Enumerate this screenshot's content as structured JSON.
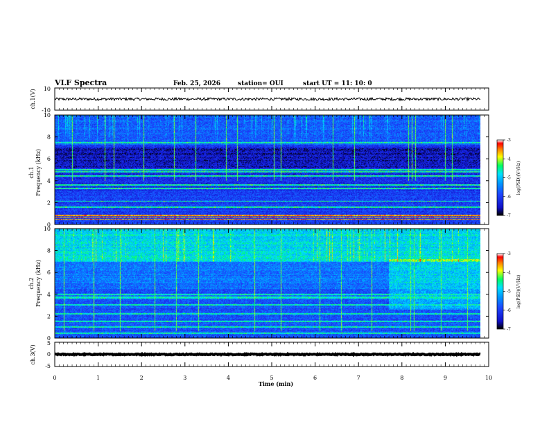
{
  "header": {
    "title": "VLF Spectra",
    "date": "Feb. 25, 2026",
    "station": "station= OUI",
    "start_ut": "start  UT  =   11: 10: 0"
  },
  "colors": {
    "waveform": "#000000",
    "colormap": [
      "#000000",
      "#1010c8",
      "#1e46ff",
      "#0096ff",
      "#00e1ff",
      "#00ff64",
      "#ffff00",
      "#ff8000",
      "#ff0000",
      "#ffffff"
    ]
  },
  "chart_data": [
    {
      "type": "line",
      "id": "ch1",
      "ylabel": "ch.1(V)",
      "ylim": [
        -10,
        10
      ],
      "yticks": [
        "10",
        "-10"
      ],
      "xlim": [
        0,
        10
      ],
      "baseline": 0,
      "noise_amplitude": 1.2
    },
    {
      "type": "heatmap",
      "id": "ch1-spectrogram",
      "ylabel_top": "ch.1",
      "ylabel": "Frequency  (kHz)",
      "ylim": [
        0,
        10
      ],
      "yticks": [
        "0",
        "2",
        "4",
        "6",
        "8",
        "10"
      ],
      "xlim": [
        0,
        10
      ],
      "colorbar": {
        "label": "log(PSD)(V²/Hz)",
        "range": [
          -7,
          -3
        ],
        "ticks": [
          "-3",
          "-4",
          "-5",
          "-6",
          "-7"
        ]
      },
      "hot_lines_khz": [
        0.45,
        0.65,
        0.78
      ],
      "tone_lines_khz": [
        1.55,
        2.1,
        3.3,
        3.6,
        4.4,
        4.8,
        5.0,
        7.5
      ],
      "bright_band_khz": [
        7.3,
        10
      ],
      "dark_band_khz": [
        5.2,
        7.0
      ],
      "spike_times_min": [
        0.4,
        1.15,
        1.35,
        2.05,
        2.75,
        3.25,
        3.95,
        4.2,
        5.05,
        5.2,
        6.4,
        6.9,
        8.15,
        8.22,
        8.3,
        9.0,
        9.15
      ]
    },
    {
      "type": "heatmap",
      "id": "ch2-spectrogram",
      "ylabel_top": "ch.2",
      "ylabel": "Frequency  (kHz)",
      "ylim": [
        0,
        10
      ],
      "yticks": [
        "0",
        "2",
        "4",
        "6",
        "8",
        "10"
      ],
      "xlim": [
        0,
        10
      ],
      "colorbar": {
        "label": "log(PSD)(V²/Hz)",
        "range": [
          -7,
          -3
        ],
        "ticks": [
          "-3",
          "-4",
          "-5",
          "-6",
          "-7"
        ]
      },
      "tone_lines_khz": [
        0.4,
        1.0,
        1.5,
        2.2,
        3.0,
        3.7,
        4.0
      ],
      "bright_band_khz": [
        7.0,
        10
      ],
      "late_enhancement": {
        "start_min": 7.7,
        "khz": [
          2.6,
          7.2
        ]
      },
      "spike_times_min": [
        0.2,
        0.9,
        1.5,
        2.3,
        2.8,
        3.3,
        4.6,
        5.2,
        6.1,
        6.6,
        7.3,
        8.2,
        8.27,
        8.9,
        9.5
      ]
    },
    {
      "type": "line",
      "id": "ch3",
      "ylabel": "ch.3(V)",
      "ylim": [
        -5,
        5
      ],
      "yticks": [
        "5",
        "0",
        "-5"
      ],
      "xlim": [
        0,
        10
      ],
      "baseline": 0,
      "noise_amplitude": 0.2
    }
  ],
  "x_axis": {
    "label": "Time  (min)",
    "ticks": [
      "0",
      "1",
      "2",
      "3",
      "4",
      "5",
      "6",
      "7",
      "8",
      "9",
      "10"
    ],
    "data_end_min": 9.82
  }
}
